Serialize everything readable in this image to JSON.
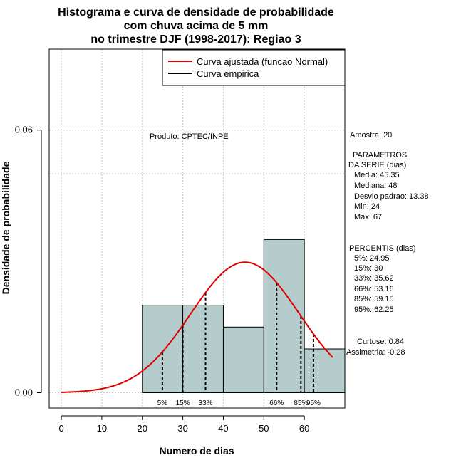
{
  "chart_data": {
    "type": "bar",
    "title": [
      "Histograma e curva de densidade de probabilidade",
      "com chuva acima de 5 mm",
      "no trimestre DJF (1998-2017): Regiao 3"
    ],
    "xlabel": "Numero de dias",
    "ylabel": "Densidade de probabilidade",
    "xlim": [
      -3,
      70
    ],
    "ylim": [
      -0.0035,
      0.0785
    ],
    "x_ticks": [
      0,
      10,
      20,
      30,
      40,
      50,
      60
    ],
    "y_ticks": [
      0.0,
      0.06
    ],
    "y_tick_labels": [
      "0.00",
      "0.06"
    ],
    "grid": true,
    "hline": 0.05,
    "bins": [
      {
        "x0": 20,
        "x1": 30,
        "density": 0.02
      },
      {
        "x0": 30,
        "x1": 40,
        "density": 0.02
      },
      {
        "x0": 40,
        "x1": 50,
        "density": 0.015
      },
      {
        "x0": 50,
        "x1": 60,
        "density": 0.035
      },
      {
        "x0": 60,
        "x1": 70,
        "density": 0.01
      }
    ],
    "series": [
      {
        "name": "Curva ajustada (funcao Normal)",
        "mean": 45.35,
        "sd": 13.38,
        "x_range": [
          0,
          67
        ],
        "color": "#e00000"
      },
      {
        "name": "Curva empirica",
        "color": "#000000"
      }
    ],
    "percentiles": [
      {
        "label": "5%",
        "x": 24.95
      },
      {
        "label": "15%",
        "x": 30
      },
      {
        "label": "33%",
        "x": 35.62
      },
      {
        "label": "66%",
        "x": 53.16
      },
      {
        "label": "85%",
        "x": 59.15
      },
      {
        "label": "95%",
        "x": 62.25
      }
    ],
    "legend_position": "top-right",
    "produto": "Produto: CPTEC/INPE",
    "stats_panel": {
      "amostra": "Amostra: 20",
      "parametros_title_1": "PARAMETROS",
      "parametros_title_2": "DA SERIE (dias)",
      "media": "Media: 45.35",
      "mediana": "Mediana: 48",
      "desvio": "Desvio padrao: 13.38",
      "min": "Min: 24",
      "max": "Max: 67",
      "percentis_title": "PERCENTIS (dias)",
      "p5": "5%: 24.95",
      "p15": "15%: 30",
      "p33": "33%: 35.62",
      "p66": "66%: 53.16",
      "p85": "85%: 59.15",
      "p95": "95%: 62.25",
      "curtose": "Curtose: 0.84",
      "assimetria": "Assimetria: -0.28"
    },
    "colors": {
      "bar_fill": "#b4cccc",
      "fit_curve": "#e00000",
      "empirical": "#000000",
      "grid": "#c8c8c8"
    }
  }
}
